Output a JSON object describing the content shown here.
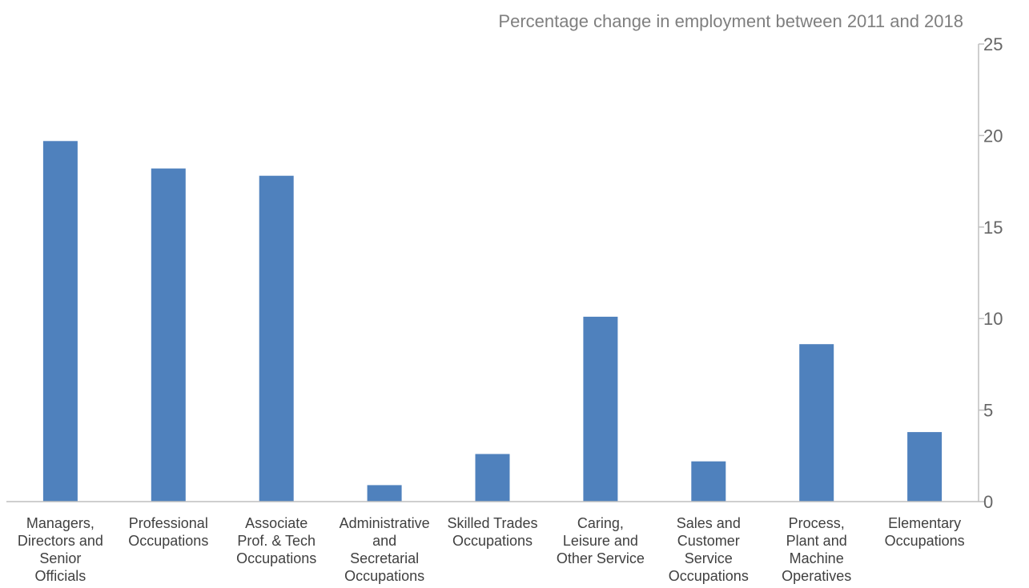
{
  "chart_data": {
    "type": "bar",
    "ylabel": "Percentage change in employment between 2011 and 2018",
    "categories": [
      "Managers, Directors and Senior Officials",
      "Professional Occupations",
      "Associate Prof. & Tech Occupations",
      "Administrative and Secretarial Occupations",
      "Skilled Trades Occupations",
      "Caring, Leisure and Other Service",
      "Sales and Customer Service Occupations",
      "Process, Plant and Machine Operatives",
      "Elementary Occupations"
    ],
    "category_lines": [
      [
        "Managers,",
        "Directors and",
        "Senior",
        "Officials"
      ],
      [
        "Professional",
        "Occupations"
      ],
      [
        "Associate",
        "Prof. & Tech",
        "Occupations"
      ],
      [
        "Administrative",
        "and",
        "Secretarial",
        "Occupations"
      ],
      [
        "Skilled Trades",
        "Occupations"
      ],
      [
        "Caring,",
        "Leisure and",
        "Other Service"
      ],
      [
        "Sales and",
        "Customer",
        "Service",
        "Occupations"
      ],
      [
        "Process,",
        "Plant and",
        "Machine",
        "Operatives"
      ],
      [
        "Elementary",
        "Occupations"
      ]
    ],
    "values": [
      19.7,
      18.2,
      17.8,
      0.9,
      2.6,
      10.1,
      2.2,
      8.6,
      3.8
    ],
    "ylim": [
      0,
      25
    ],
    "yticks": [
      "0",
      "5",
      "10",
      "15",
      "20",
      "25"
    ],
    "y_axis_position": "right",
    "grid": false,
    "legend": "none",
    "bar_color": "#4f81bd",
    "axis_color": "#bfbfbf"
  }
}
